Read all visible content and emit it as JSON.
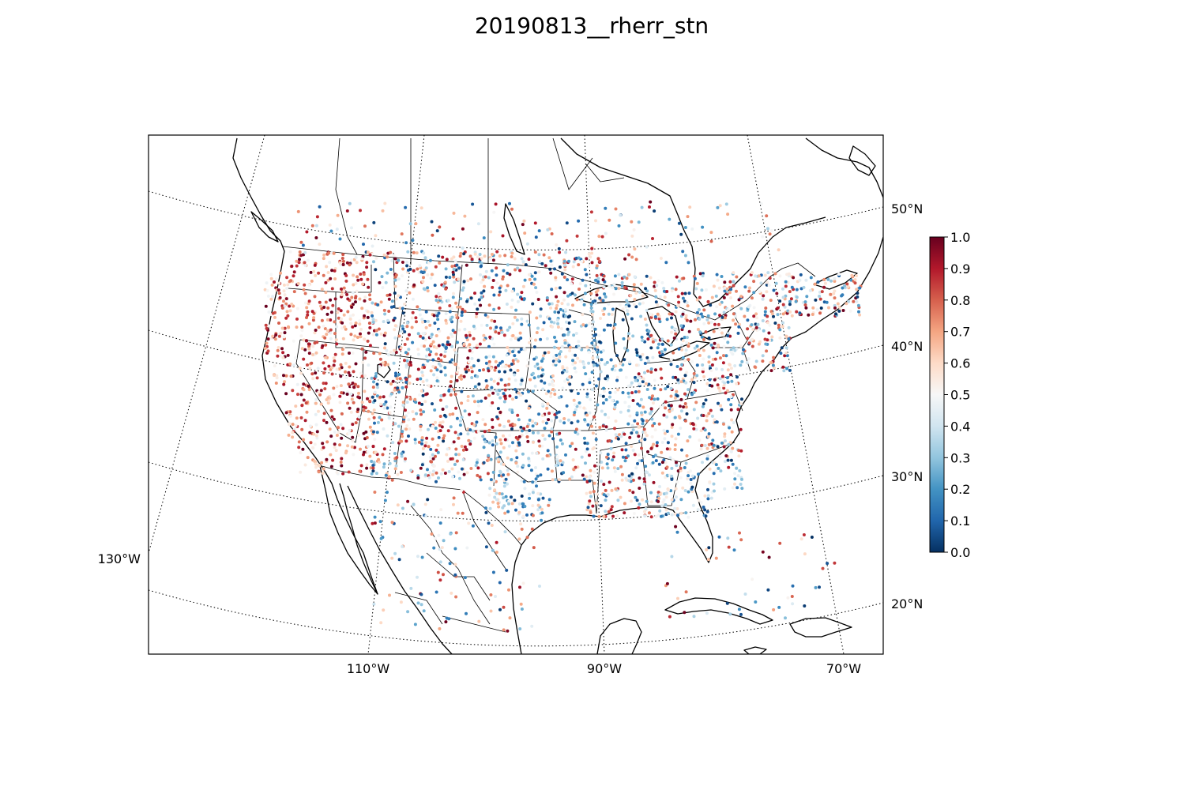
{
  "figure": {
    "title": "20190813__rherr_stn"
  },
  "map": {
    "projection": "lambert-conformal-conic",
    "region": "North America (CONUS, southern Canada, northern Mexico, Caribbean)",
    "parallel_labels": [
      "50°N",
      "40°N",
      "30°N",
      "20°N"
    ],
    "meridian_labels_bottom": [
      "110°W",
      "90°W",
      "70°W"
    ],
    "meridian_labels_left": [
      "130°W"
    ],
    "marker": "small filled circles (station values)",
    "colormap": "RdBu_r"
  },
  "colorbar": {
    "vmin": 0.0,
    "vmax": 1.0,
    "ticks": [
      "0.0",
      "0.1",
      "0.2",
      "0.3",
      "0.4",
      "0.5",
      "0.6",
      "0.7",
      "0.8",
      "0.9",
      "1.0"
    ],
    "colors": {
      "low": "#053061",
      "mid": "#f7f7f7",
      "high": "#67001f"
    }
  }
}
